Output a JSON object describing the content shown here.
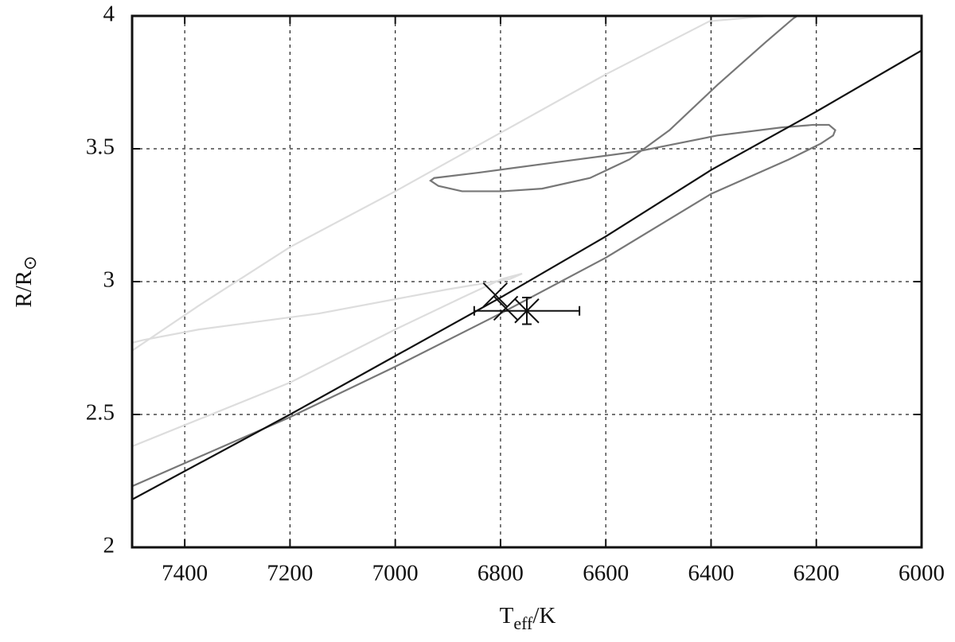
{
  "chart_data": {
    "type": "line",
    "xlabel_parts": [
      "T",
      "eff",
      "/K"
    ],
    "ylabel_parts": [
      "R/R",
      "⊙"
    ],
    "xlim": [
      7500,
      6000
    ],
    "ylim": [
      2,
      4
    ],
    "xticks": [
      7400,
      7200,
      7000,
      6800,
      6600,
      6400,
      6200,
      6000
    ],
    "yticks": [
      2,
      2.5,
      3,
      3.5,
      4
    ],
    "grid": true,
    "series": [
      {
        "color": "#dddddd",
        "style": "line",
        "x": [
          7500,
          7200,
          7000,
          6873,
          6797,
          6759,
          6782,
          6903,
          7145,
          7373,
          7479,
          7500,
          7500,
          7373,
          7200,
          7000,
          6800,
          6600,
          6403,
          6290
        ],
        "y": [
          2.38,
          2.62,
          2.82,
          2.94,
          3.01,
          3.03,
          3.01,
          2.97,
          2.88,
          2.82,
          2.78,
          2.77,
          2.74,
          2.91,
          3.13,
          3.34,
          3.56,
          3.78,
          3.98,
          4.0
        ]
      },
      {
        "color": "#777777",
        "style": "line",
        "x": [
          7500,
          7200,
          7000,
          6800,
          6600,
          6400,
          6252,
          6191,
          6168,
          6164,
          6176,
          6206,
          6267,
          6388,
          6539,
          6691,
          6842,
          6926,
          6933,
          6918,
          6873,
          6797,
          6721,
          6630,
          6555,
          6479,
          6388,
          6297,
          6244,
          6236
        ],
        "y": [
          2.23,
          2.49,
          2.68,
          2.88,
          3.09,
          3.33,
          3.46,
          3.52,
          3.55,
          3.57,
          3.59,
          3.59,
          3.58,
          3.55,
          3.49,
          3.45,
          3.41,
          3.39,
          3.38,
          3.36,
          3.34,
          3.34,
          3.35,
          3.39,
          3.46,
          3.57,
          3.74,
          3.9,
          3.99,
          4.0
        ]
      },
      {
        "color": "#111111",
        "style": "line",
        "x": [
          7500,
          7200,
          7000,
          6800,
          6600,
          6400,
          6200,
          6000
        ],
        "y": [
          2.18,
          2.5,
          2.72,
          2.94,
          3.17,
          3.42,
          3.64,
          3.87
        ]
      },
      {
        "color": "#111111",
        "style": "points",
        "x": [
          6810,
          6790,
          6750
        ],
        "y": [
          2.95,
          2.9,
          2.89
        ],
        "xerr": [
          null,
          null,
          100
        ],
        "yerr": [
          null,
          null,
          0.05
        ]
      }
    ]
  }
}
